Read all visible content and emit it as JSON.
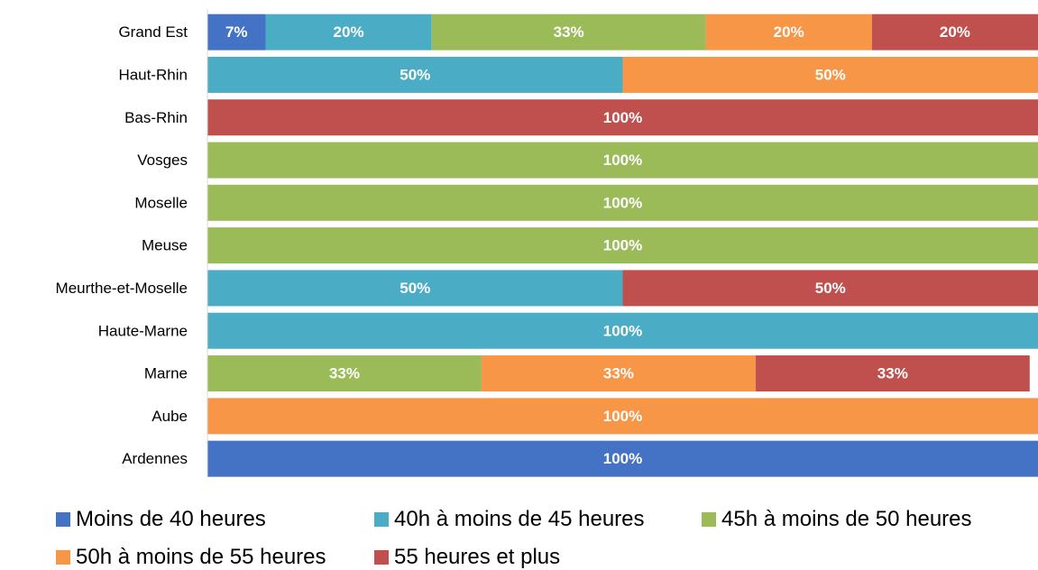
{
  "chart_data": {
    "type": "bar",
    "orientation": "horizontal",
    "stacked": true,
    "percent": true,
    "categories": [
      "Grand Est",
      "Haut-Rhin",
      "Bas-Rhin",
      "Vosges",
      "Moselle",
      "Meuse",
      "Meurthe-et-Moselle",
      "Haute-Marne",
      "Marne",
      "Aube",
      "Ardennes"
    ],
    "series": [
      {
        "name": "Moins de 40 heures",
        "color": "#4472C4",
        "values": [
          7,
          0,
          0,
          0,
          0,
          0,
          0,
          0,
          0,
          0,
          100
        ]
      },
      {
        "name": "40h à moins de 45 heures",
        "color": "#4BACC6",
        "values": [
          20,
          50,
          0,
          0,
          0,
          0,
          50,
          100,
          0,
          0,
          0
        ]
      },
      {
        "name": "45h à moins de 50 heures",
        "color": "#9BBB59",
        "values": [
          33,
          0,
          0,
          100,
          100,
          100,
          0,
          0,
          33,
          0,
          0
        ]
      },
      {
        "name": "50h à moins de 55 heures",
        "color": "#F79646",
        "values": [
          20,
          50,
          0,
          0,
          0,
          0,
          0,
          0,
          33,
          100,
          0
        ]
      },
      {
        "name": "55 heures et plus",
        "color": "#C0504D",
        "values": [
          20,
          0,
          100,
          0,
          0,
          0,
          50,
          0,
          33,
          0,
          0
        ]
      }
    ],
    "xlim": [
      0,
      100
    ],
    "grid": false,
    "legend_position": "bottom",
    "title": "",
    "xlabel": "",
    "ylabel": ""
  }
}
